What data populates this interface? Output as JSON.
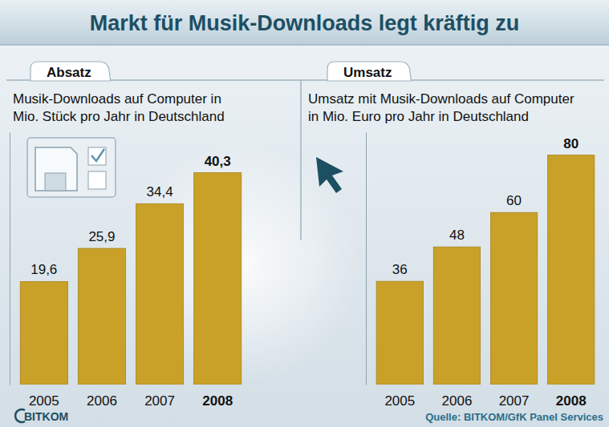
{
  "title": "Markt für Musik-Downloads legt kräftig zu",
  "source": "Quelle: BITKOM/GfK Panel Services",
  "logo": "BITKOM",
  "chart_data": [
    {
      "type": "bar",
      "title": "Absatz",
      "subtitle": "Musik-Downloads auf Computer in Mio. Stück pro Jahr in Deutschland",
      "categories": [
        "2005",
        "2006",
        "2007",
        "2008"
      ],
      "values": [
        19.6,
        25.9,
        34.4,
        40.3
      ],
      "value_labels": [
        "19,6",
        "25,9",
        "34,4",
        "40,3"
      ],
      "color": "#c9a128",
      "ylim": [
        0,
        48
      ],
      "data_labels": true,
      "tick_labels": "x"
    },
    {
      "type": "bar",
      "title": "Umsatz",
      "subtitle": "Umsatz mit Musik-Downloads auf Computer in Mio. Euro pro Jahr in Deutschland",
      "categories": [
        "2005",
        "2006",
        "2007",
        "2008"
      ],
      "values": [
        36,
        48,
        60,
        80
      ],
      "color": "#c9a128",
      "ylim": [
        0,
        88
      ],
      "data_labels": true,
      "tick_labels": "x"
    }
  ]
}
